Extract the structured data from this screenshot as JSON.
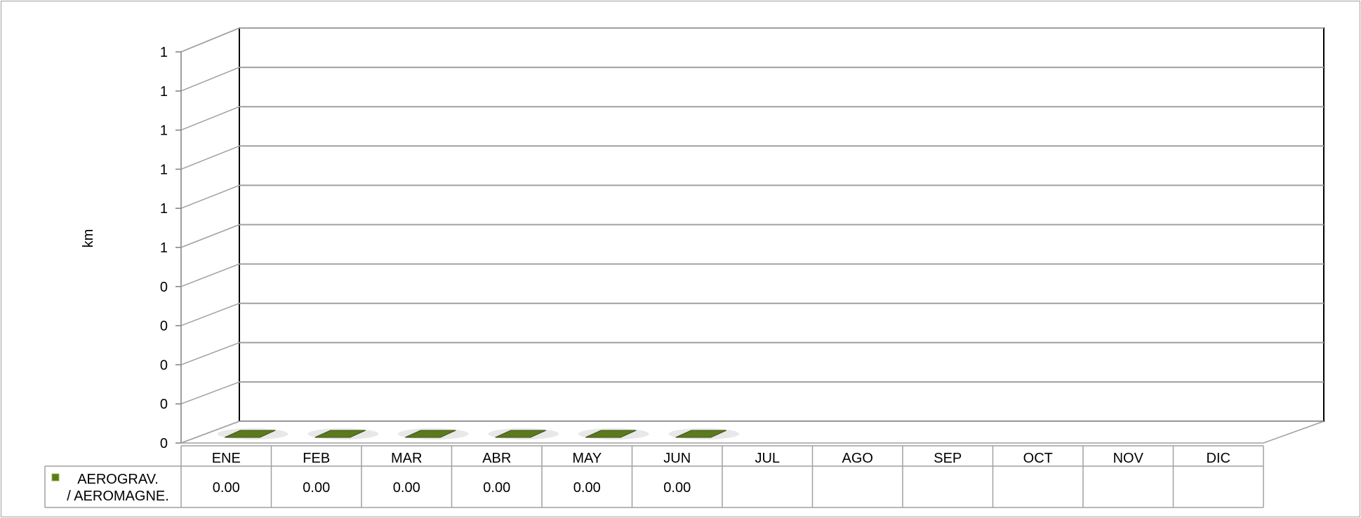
{
  "chart_data": {
    "type": "bar",
    "ylabel": "km",
    "y_tick_labels": [
      "0",
      "0",
      "0",
      "0",
      "0",
      "1",
      "1",
      "1",
      "1",
      "1",
      "1"
    ],
    "ylim": [
      0,
      1
    ],
    "categories": [
      "ENE",
      "FEB",
      "MAR",
      "ABR",
      "MAY",
      "JUN",
      "JUL",
      "AGO",
      "SEP",
      "OCT",
      "NOV",
      "DIC"
    ],
    "series": [
      {
        "name_lines": [
          "AEROGRAV.",
          "/ AEROMAGNE."
        ],
        "values": [
          0,
          0,
          0,
          0,
          0,
          0,
          null,
          null,
          null,
          null,
          null,
          null
        ],
        "data_labels": [
          "0.00",
          "0.00",
          "0.00",
          "0.00",
          "0.00",
          "0.00",
          "",
          "",
          "",
          "",
          "",
          ""
        ],
        "color": "#5b7a1e"
      }
    ],
    "grid": true,
    "legend": "data-table"
  }
}
